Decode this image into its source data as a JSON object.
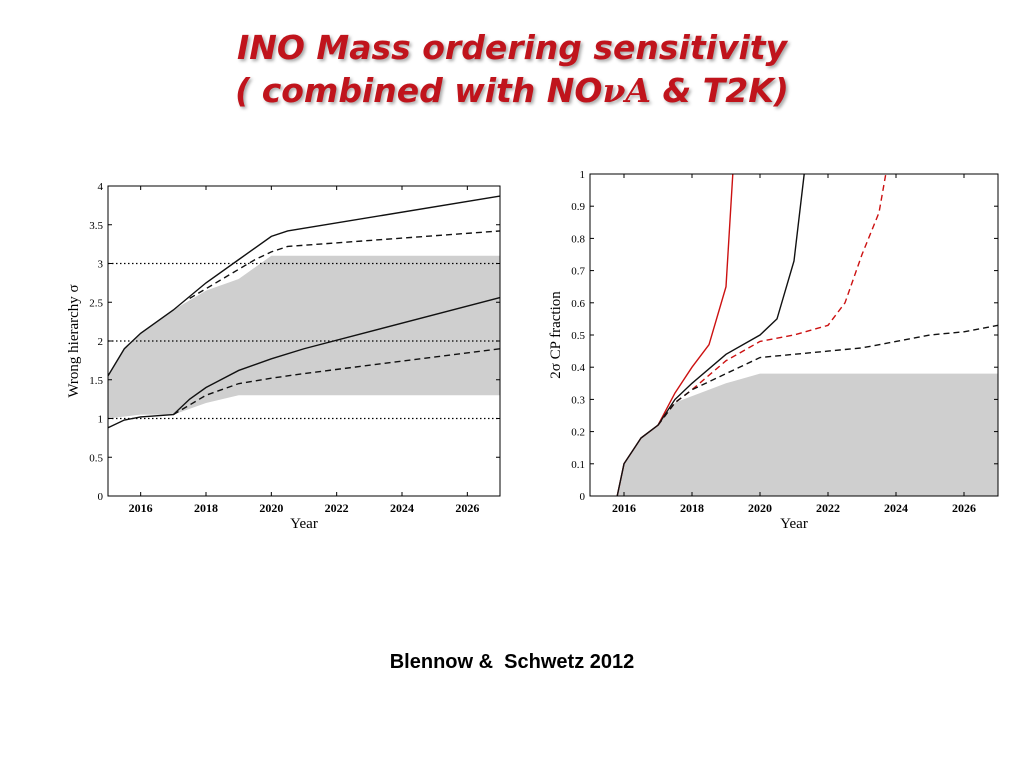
{
  "slide": {
    "title_line1": "INO Mass ordering sensitivity",
    "title_line2_prefix": "( combined with NO",
    "title_line2_nu": "νA",
    "title_line2_suffix": " & T2K)",
    "citation": "Blennow &  Schwetz 2012"
  },
  "colors": {
    "title": "#c0141c",
    "band": "#cfcfcf",
    "red": "#cc1111",
    "black": "#111111"
  },
  "chart_data": [
    {
      "type": "line",
      "xlabel": "Year",
      "ylabel": "Wrong hierarchy σ",
      "xlim": [
        2015,
        2027
      ],
      "ylim": [
        0,
        4
      ],
      "xticks": [
        "2016",
        "2018",
        "2020",
        "2022",
        "2024",
        "2026"
      ],
      "yticks": [
        "0",
        "0.5",
        "1",
        "1.5",
        "2",
        "2.5",
        "3",
        "3.5",
        "4"
      ],
      "reference_lines": [
        1,
        2,
        3
      ],
      "band": {
        "upper": [
          [
            2015,
            1.55
          ],
          [
            2015.5,
            1.9
          ],
          [
            2016,
            2.1
          ],
          [
            2017,
            2.4
          ],
          [
            2018,
            2.65
          ],
          [
            2019,
            2.8
          ],
          [
            2020,
            3.1
          ],
          [
            2027,
            3.1
          ]
        ],
        "lower": [
          [
            2015,
            1.0
          ],
          [
            2016,
            1.05
          ],
          [
            2017,
            1.05
          ],
          [
            2018,
            1.2
          ],
          [
            2019,
            1.3
          ],
          [
            2027,
            1.3
          ]
        ]
      },
      "series": [
        {
          "style": "solid",
          "color": "black",
          "points": [
            [
              2015,
              1.55
            ],
            [
              2015.5,
              1.9
            ],
            [
              2016,
              2.1
            ],
            [
              2017,
              2.4
            ],
            [
              2018,
              2.75
            ],
            [
              2019,
              3.05
            ],
            [
              2020,
              3.35
            ],
            [
              2020.5,
              3.42
            ],
            [
              2027,
              3.87
            ]
          ]
        },
        {
          "style": "dashed",
          "color": "black",
          "points": [
            [
              2017.5,
              2.55
            ],
            [
              2018.5,
              2.8
            ],
            [
              2019.5,
              3.05
            ],
            [
              2020,
              3.15
            ],
            [
              2020.5,
              3.22
            ],
            [
              2027,
              3.42
            ]
          ]
        },
        {
          "style": "solid",
          "color": "black",
          "points": [
            [
              2015,
              0.88
            ],
            [
              2015.5,
              0.98
            ],
            [
              2016,
              1.02
            ],
            [
              2017,
              1.05
            ],
            [
              2017.5,
              1.25
            ],
            [
              2018,
              1.4
            ],
            [
              2019,
              1.62
            ],
            [
              2020,
              1.77
            ],
            [
              2021,
              1.9
            ],
            [
              2027,
              2.56
            ]
          ]
        },
        {
          "style": "dashed",
          "color": "black",
          "points": [
            [
              2017,
              1.05
            ],
            [
              2018,
              1.3
            ],
            [
              2019,
              1.45
            ],
            [
              2020,
              1.52
            ],
            [
              2021,
              1.58
            ],
            [
              2027,
              1.9
            ]
          ]
        }
      ]
    },
    {
      "type": "line",
      "xlabel": "Year",
      "ylabel": "2σ CP fraction",
      "xlim": [
        2015,
        2027
      ],
      "ylim": [
        0,
        1
      ],
      "xticks": [
        "2016",
        "2018",
        "2020",
        "2022",
        "2024",
        "2026"
      ],
      "yticks": [
        "0",
        "0.1",
        "0.2",
        "0.3",
        "0.4",
        "0.5",
        "0.6",
        "0.7",
        "0.8",
        "0.9",
        "1"
      ],
      "band": {
        "upper": [
          [
            2015.8,
            0
          ],
          [
            2016,
            0.1
          ],
          [
            2016.5,
            0.18
          ],
          [
            2017,
            0.22
          ],
          [
            2017.5,
            0.29
          ],
          [
            2018,
            0.31
          ],
          [
            2019,
            0.35
          ],
          [
            2020,
            0.38
          ],
          [
            2027,
            0.38
          ]
        ]
      },
      "series": [
        {
          "style": "solid",
          "color": "red",
          "points": [
            [
              2015.8,
              0
            ],
            [
              2016,
              0.1
            ],
            [
              2016.5,
              0.18
            ],
            [
              2017,
              0.22
            ],
            [
              2017.5,
              0.32
            ],
            [
              2018,
              0.4
            ],
            [
              2018.5,
              0.47
            ],
            [
              2019,
              0.65
            ],
            [
              2019.2,
              1.0
            ]
          ]
        },
        {
          "style": "solid",
          "color": "black",
          "points": [
            [
              2015.8,
              0
            ],
            [
              2016,
              0.1
            ],
            [
              2016.5,
              0.18
            ],
            [
              2017,
              0.22
            ],
            [
              2017.5,
              0.3
            ],
            [
              2018,
              0.35
            ],
            [
              2019,
              0.44
            ],
            [
              2020,
              0.5
            ],
            [
              2020.5,
              0.55
            ],
            [
              2021,
              0.73
            ],
            [
              2021.3,
              1.0
            ]
          ]
        },
        {
          "style": "dashed",
          "color": "red",
          "points": [
            [
              2017,
              0.22
            ],
            [
              2017.5,
              0.29
            ],
            [
              2018,
              0.33
            ],
            [
              2019,
              0.42
            ],
            [
              2020,
              0.48
            ],
            [
              2021,
              0.5
            ],
            [
              2022,
              0.53
            ],
            [
              2022.5,
              0.6
            ],
            [
              2023,
              0.75
            ],
            [
              2023.5,
              0.88
            ],
            [
              2023.7,
              1.0
            ]
          ]
        },
        {
          "style": "dashed",
          "color": "black",
          "points": [
            [
              2017,
              0.22
            ],
            [
              2017.5,
              0.29
            ],
            [
              2018,
              0.33
            ],
            [
              2019,
              0.38
            ],
            [
              2020,
              0.43
            ],
            [
              2021,
              0.44
            ],
            [
              2022,
              0.45
            ],
            [
              2023,
              0.46
            ],
            [
              2024,
              0.48
            ],
            [
              2025,
              0.5
            ],
            [
              2026,
              0.51
            ],
            [
              2027,
              0.53
            ]
          ]
        }
      ]
    }
  ]
}
